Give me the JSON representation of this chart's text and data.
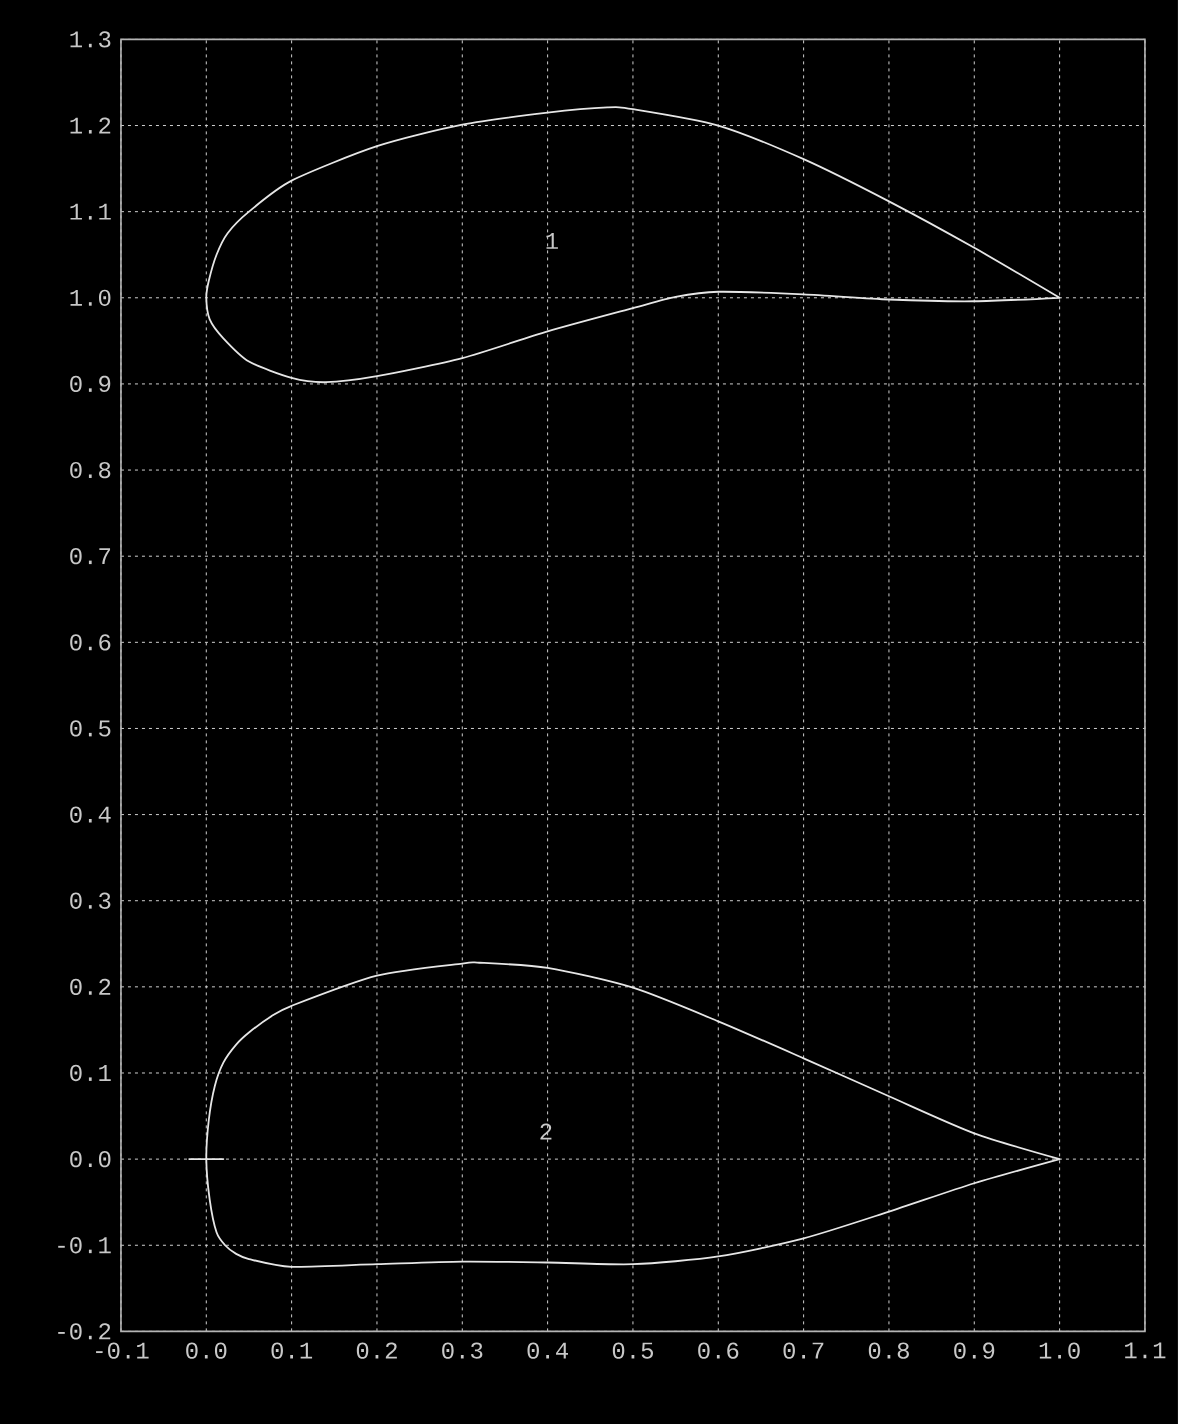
{
  "chart_data": {
    "type": "line",
    "xlim": [
      -0.1,
      1.1
    ],
    "ylim": [
      -0.2,
      1.3
    ],
    "xticks": [
      -0.1,
      {
        "value": 0,
        "label": "0.0"
      },
      0.1,
      0.2,
      0.3,
      0.4,
      0.5,
      0.6,
      0.7,
      0.8,
      0.9,
      {
        "value": 1,
        "label": "1.0"
      },
      1.1
    ],
    "yticks": [
      -0.2,
      -0.1,
      {
        "value": 0,
        "label": "0.0"
      },
      0.1,
      0.2,
      0.3,
      0.4,
      0.5,
      0.6,
      0.7,
      0.8,
      0.9,
      {
        "value": 1,
        "label": "1.0"
      },
      1.1,
      1.2,
      1.3
    ],
    "grid": true,
    "annotations": [
      "1",
      "2"
    ]
  }
}
